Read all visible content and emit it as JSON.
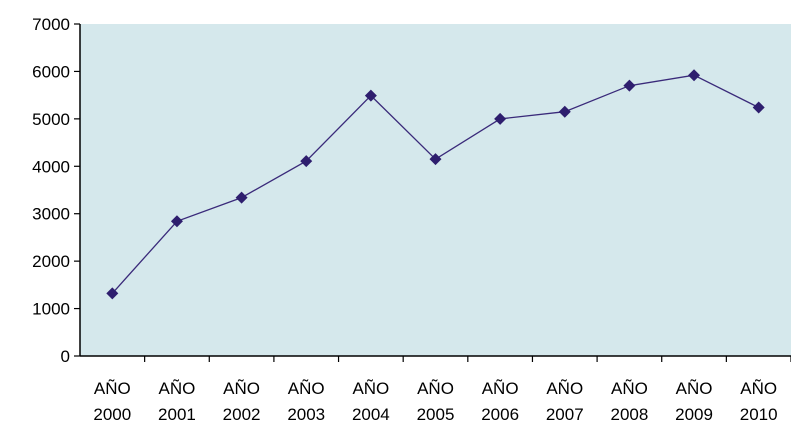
{
  "chart_data": {
    "type": "line",
    "categories": [
      "AÑO 2000",
      "AÑO 2001",
      "AÑO 2002",
      "AÑO 2003",
      "AÑO 2004",
      "AÑO 2005",
      "AÑO 2006",
      "AÑO 2007",
      "AÑO 2008",
      "AÑO 2009",
      "AÑO 2010"
    ],
    "series": [
      {
        "values": [
          1320,
          2840,
          3340,
          4110,
          5490,
          4150,
          5000,
          5150,
          5700,
          5920,
          5240
        ]
      }
    ],
    "y_ticks": [
      "0",
      "1000",
      "2000",
      "3000",
      "4000",
      "5000",
      "6000",
      "7000"
    ],
    "ylim": [
      0,
      7000
    ],
    "grid": false,
    "legend": "none",
    "colors": {
      "plot_area": "#d5e8ec",
      "line": "#3a2a7a",
      "marker": "#2e1e6e",
      "axis": "#000000"
    }
  }
}
